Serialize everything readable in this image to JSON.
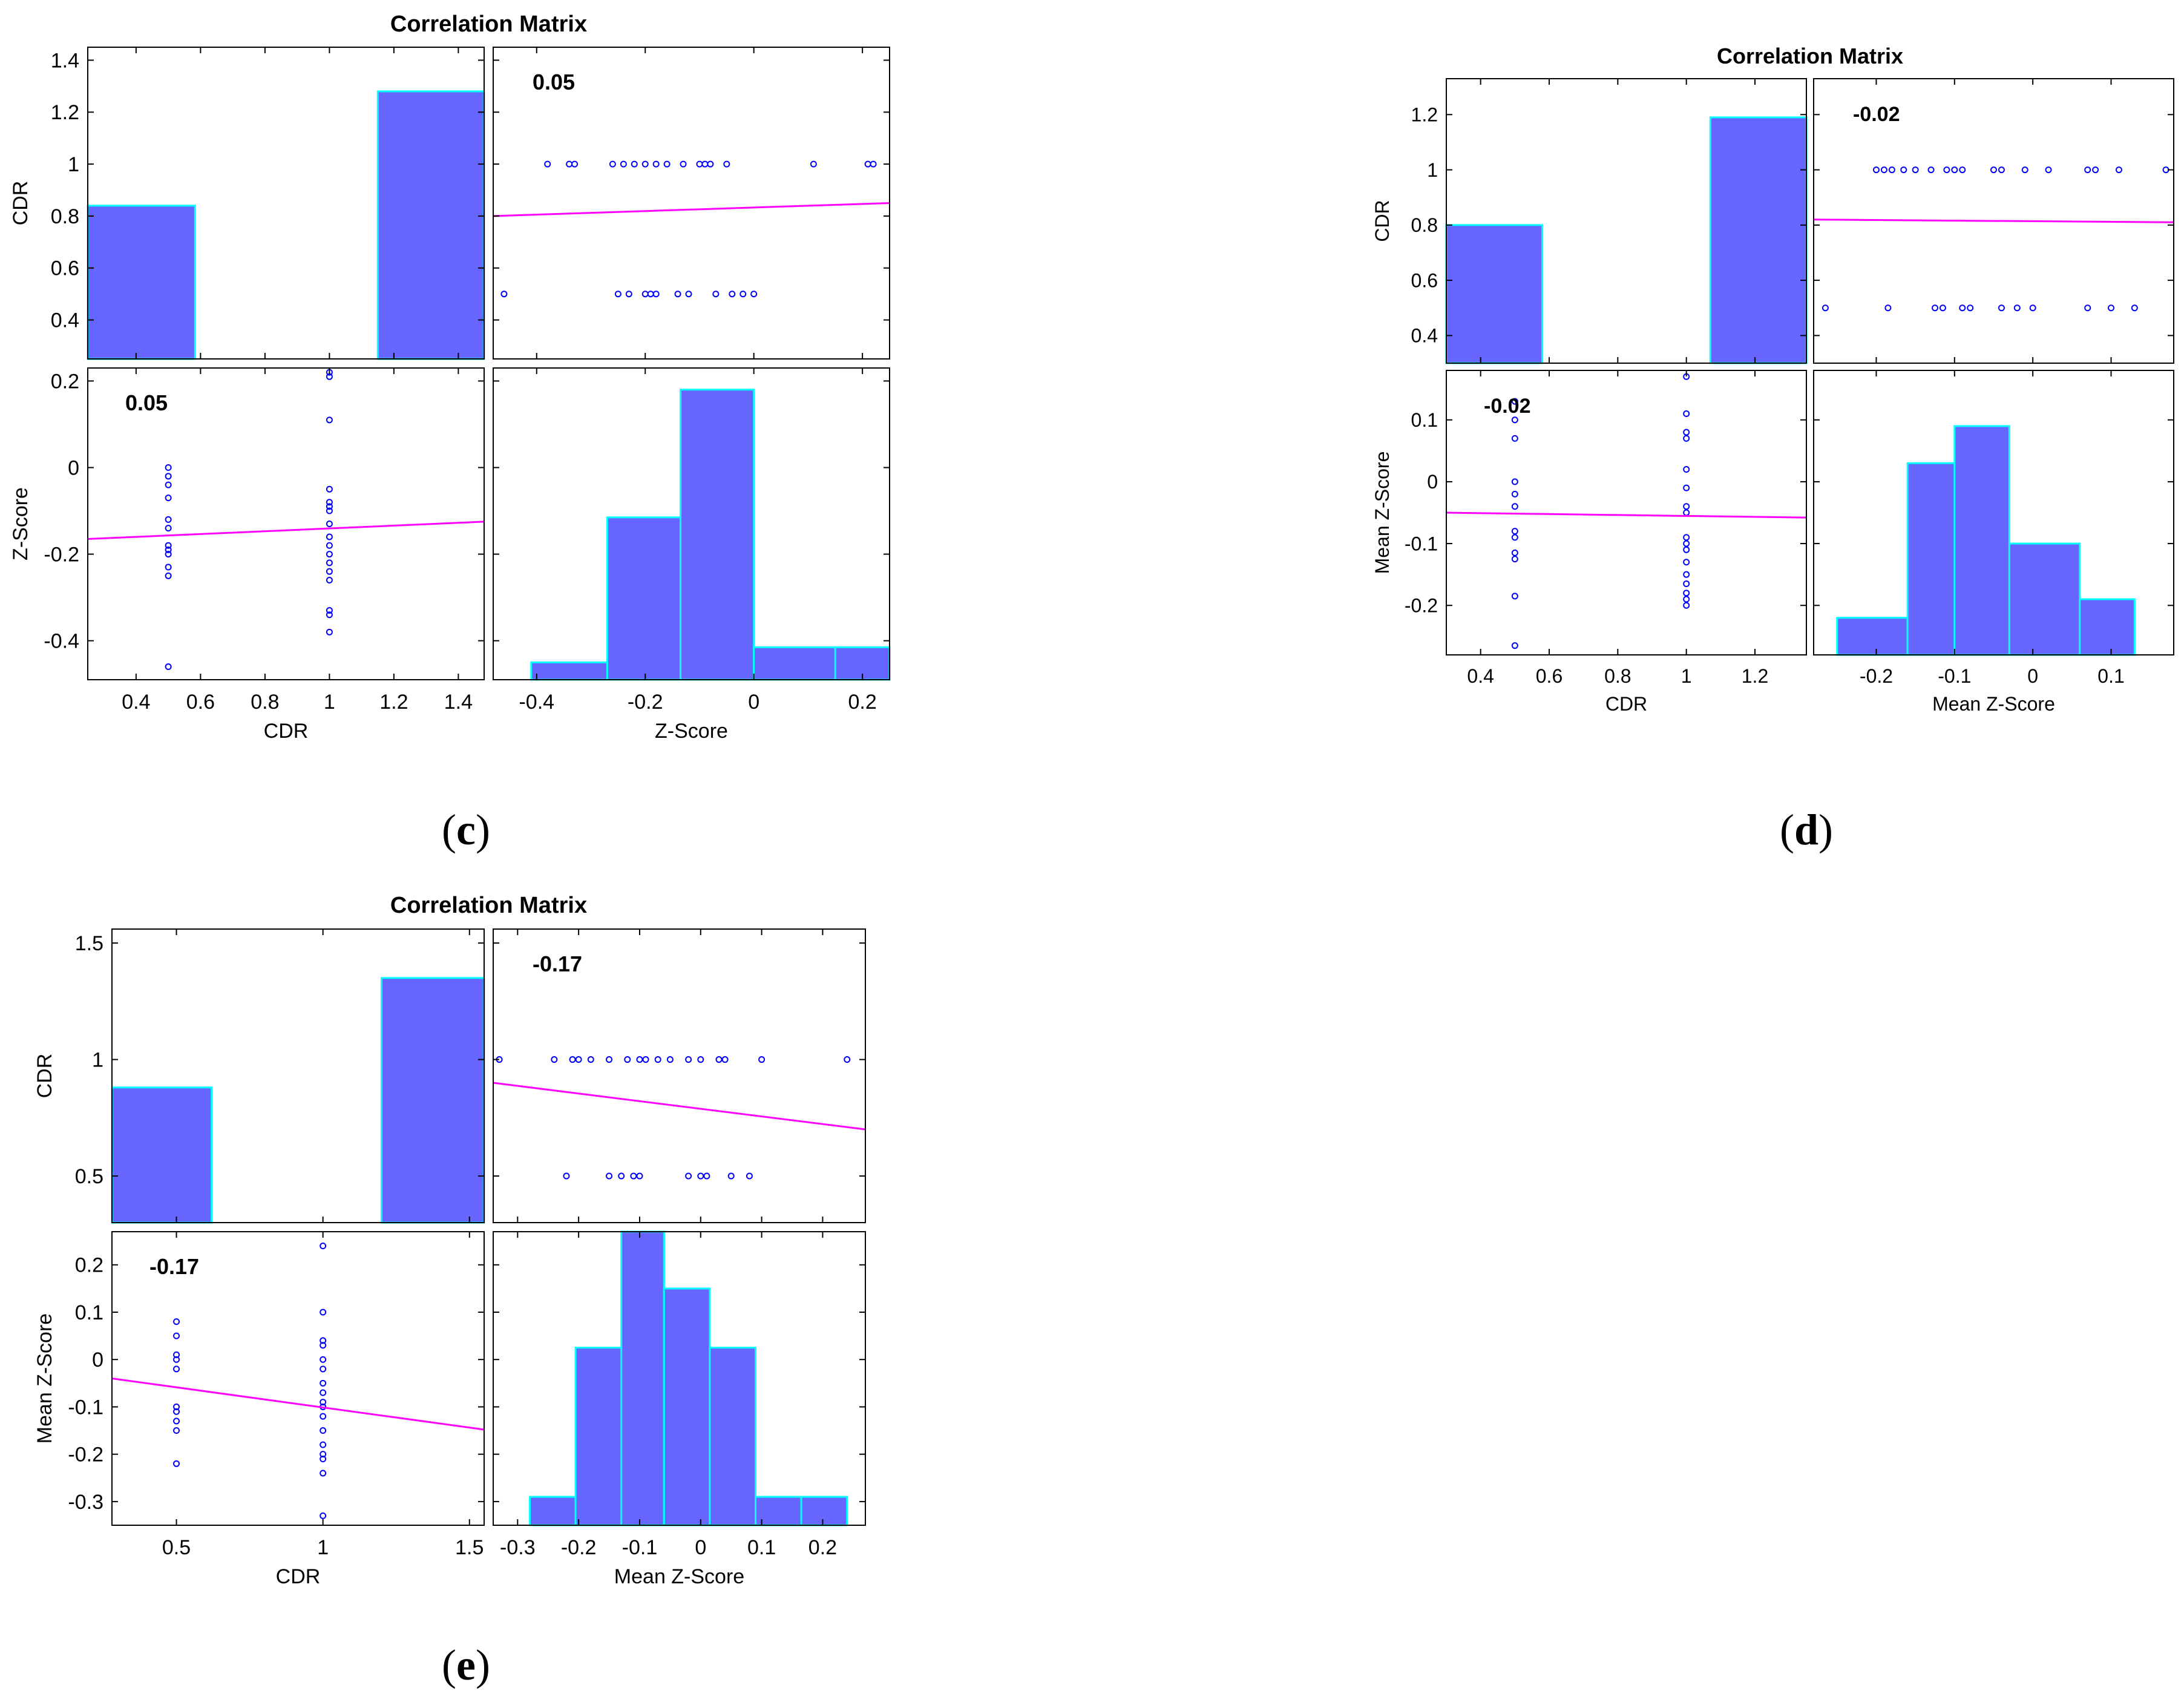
{
  "colors": {
    "bar_fill": "#6666ff",
    "bar_edge": "#00ffff",
    "fit_line": "#ff00ff",
    "scatter": "#0000ff",
    "axes": "#000000"
  },
  "chart_data": [
    {
      "id": "c",
      "type": "scatter-matrix",
      "title": "Correlation Matrix",
      "caption": {
        "open": "(",
        "letter": "c",
        "close": ")"
      },
      "var_labels": [
        "CDR",
        "Z-Score"
      ],
      "correlation": "0.05",
      "cdr_axis": {
        "ylim": [
          0.25,
          1.45
        ],
        "yticks": [
          0.4,
          0.6,
          0.8,
          1,
          1.2,
          1.4
        ],
        "ytick_labels": [
          "0.4",
          "0.6",
          "0.8",
          "1",
          "1.2",
          "1.4"
        ],
        "xlim": [
          0.25,
          1.48
        ],
        "xticks": [
          0.4,
          0.6,
          0.8,
          1,
          1.2,
          1.4
        ],
        "xtick_labels": [
          "0.4",
          "0.6",
          "0.8",
          "1",
          "1.2",
          "1.4"
        ]
      },
      "z_axis": {
        "ylim": [
          -0.49,
          0.23
        ],
        "yticks": [
          -0.4,
          -0.2,
          0,
          0.2
        ],
        "ytick_labels": [
          "-0.4",
          "-0.2",
          "0",
          "0.2"
        ],
        "xlim": [
          -0.48,
          0.25
        ],
        "xticks": [
          -0.4,
          -0.2,
          0,
          0.2
        ],
        "xtick_labels": [
          "-0.4",
          "-0.2",
          "0",
          "0.2"
        ]
      },
      "cdr_hist": [
        {
          "x0": 0.25,
          "x1": 0.583,
          "h": 0.84
        },
        {
          "x0": 1.15,
          "x1": 1.48,
          "h": 1.28
        }
      ],
      "z_hist": [
        {
          "x0": -0.41,
          "x1": -0.27,
          "h": -0.45
        },
        {
          "x0": -0.27,
          "x1": -0.135,
          "h": -0.115
        },
        {
          "x0": -0.135,
          "x1": 0.0,
          "h": 0.18
        },
        {
          "x0": 0.0,
          "x1": 0.15,
          "h": -0.415
        },
        {
          "x0": 0.15,
          "x1": 0.25,
          "h": -0.415
        }
      ],
      "z_cdr05": [
        -0.46,
        -0.25,
        -0.23,
        -0.2,
        -0.19,
        -0.18,
        -0.14,
        -0.12,
        -0.07,
        -0.04,
        -0.02,
        0.0
      ],
      "z_cdr1": [
        -0.38,
        -0.34,
        -0.33,
        -0.26,
        -0.24,
        -0.22,
        -0.2,
        -0.18,
        -0.16,
        -0.13,
        -0.1,
        -0.09,
        -0.08,
        -0.05,
        0.11,
        0.21,
        0.22
      ],
      "fit_lower": [
        [
          0.25,
          -0.165
        ],
        [
          1.48,
          -0.125
        ]
      ],
      "fit_upper": [
        [
          -0.48,
          0.8
        ],
        [
          0.25,
          0.85
        ]
      ]
    },
    {
      "id": "d",
      "type": "scatter-matrix",
      "title": "Correlation Matrix",
      "caption": {
        "open": "(",
        "letter": "d",
        "close": ")"
      },
      "var_labels": [
        "CDR",
        "Mean Z-Score"
      ],
      "correlation": "-0.02",
      "cdr_axis": {
        "ylim": [
          0.3,
          1.33
        ],
        "yticks": [
          0.4,
          0.6,
          0.8,
          1,
          1.2
        ],
        "ytick_labels": [
          "0.4",
          "0.6",
          "0.8",
          "1",
          "1.2"
        ],
        "xlim": [
          0.3,
          1.35
        ],
        "xticks": [
          0.4,
          0.6,
          0.8,
          1,
          1.2
        ],
        "xtick_labels": [
          "0.4",
          "0.6",
          "0.8",
          "1",
          "1.2"
        ]
      },
      "z_axis": {
        "ylim": [
          -0.28,
          0.18
        ],
        "yticks": [
          -0.2,
          -0.1,
          0,
          0.1
        ],
        "ytick_labels": [
          "-0.2",
          "-0.1",
          "0",
          "0.1"
        ],
        "xlim": [
          -0.28,
          0.18
        ],
        "xticks": [
          -0.2,
          -0.1,
          0,
          0.1
        ],
        "xtick_labels": [
          "-0.2",
          "-0.1",
          "0",
          "0.1"
        ]
      },
      "cdr_hist": [
        {
          "x0": 0.3,
          "x1": 0.58,
          "h": 0.8
        },
        {
          "x0": 1.07,
          "x1": 1.35,
          "h": 1.19
        }
      ],
      "z_hist": [
        {
          "x0": -0.25,
          "x1": -0.16,
          "h": -0.22
        },
        {
          "x0": -0.16,
          "x1": -0.1,
          "h": 0.03
        },
        {
          "x0": -0.1,
          "x1": -0.03,
          "h": 0.09
        },
        {
          "x0": -0.03,
          "x1": 0.06,
          "h": -0.1
        },
        {
          "x0": 0.06,
          "x1": 0.13,
          "h": -0.19
        }
      ],
      "z_cdr05": [
        -0.265,
        -0.185,
        -0.125,
        -0.115,
        -0.09,
        -0.08,
        -0.04,
        -0.02,
        0.0,
        0.07,
        0.1,
        0.13
      ],
      "z_cdr1": [
        -0.2,
        -0.19,
        -0.18,
        -0.165,
        -0.15,
        -0.13,
        -0.11,
        -0.1,
        -0.09,
        -0.05,
        -0.04,
        -0.01,
        0.02,
        0.07,
        0.08,
        0.11,
        0.17
      ],
      "fit_lower": [
        [
          0.3,
          -0.05
        ],
        [
          1.35,
          -0.058
        ]
      ],
      "fit_upper": [
        [
          -0.28,
          0.82
        ],
        [
          0.18,
          0.81
        ]
      ]
    },
    {
      "id": "e",
      "type": "scatter-matrix",
      "title": "Correlation Matrix",
      "caption": {
        "open": "(",
        "letter": "e",
        "close": ")"
      },
      "var_labels": [
        "CDR",
        "Mean Z-Score"
      ],
      "correlation": "-0.17",
      "cdr_axis": {
        "ylim": [
          0.3,
          1.56
        ],
        "yticks": [
          0.5,
          1,
          1.5
        ],
        "ytick_labels": [
          "0.5",
          "1",
          "1.5"
        ],
        "xlim": [
          0.28,
          1.55
        ],
        "xticks": [
          0.5,
          1,
          1.5
        ],
        "xtick_labels": [
          "0.5",
          "1",
          "1.5"
        ]
      },
      "z_axis": {
        "ylim": [
          -0.35,
          0.27
        ],
        "yticks": [
          -0.3,
          -0.2,
          -0.1,
          0,
          0.1,
          0.2
        ],
        "ytick_labels": [
          "-0.3",
          "-0.2",
          "-0.1",
          "0",
          "0.1",
          "0.2"
        ],
        "xlim": [
          -0.34,
          0.27
        ],
        "xticks": [
          -0.3,
          -0.2,
          -0.1,
          0,
          0.1,
          0.2
        ],
        "xtick_labels": [
          "-0.3",
          "-0.2",
          "-0.1",
          "0",
          "0.1",
          "0.2"
        ]
      },
      "cdr_hist": [
        {
          "x0": 0.28,
          "x1": 0.62,
          "h": 0.88
        },
        {
          "x0": 1.2,
          "x1": 1.55,
          "h": 1.35
        }
      ],
      "z_hist": [
        {
          "x0": -0.28,
          "x1": -0.205,
          "h": -0.29
        },
        {
          "x0": -0.205,
          "x1": -0.13,
          "h": 0.025
        },
        {
          "x0": -0.13,
          "x1": -0.06,
          "h": 0.27
        },
        {
          "x0": -0.06,
          "x1": 0.015,
          "h": 0.15
        },
        {
          "x0": 0.015,
          "x1": 0.09,
          "h": 0.025
        },
        {
          "x0": 0.09,
          "x1": 0.165,
          "h": -0.29
        },
        {
          "x0": 0.165,
          "x1": 0.24,
          "h": -0.29
        }
      ],
      "z_cdr05": [
        -0.22,
        -0.15,
        -0.13,
        -0.11,
        -0.1,
        -0.02,
        0.0,
        0.01,
        0.05,
        0.08
      ],
      "z_cdr1": [
        -0.33,
        -0.24,
        -0.21,
        -0.2,
        -0.18,
        -0.15,
        -0.12,
        -0.1,
        -0.09,
        -0.07,
        -0.05,
        -0.02,
        0.0,
        0.03,
        0.04,
        0.1,
        0.24
      ],
      "fit_lower": [
        [
          0.28,
          -0.04
        ],
        [
          1.55,
          -0.148
        ]
      ],
      "fit_upper": [
        [
          -0.34,
          0.9
        ],
        [
          0.27,
          0.7
        ]
      ]
    }
  ]
}
